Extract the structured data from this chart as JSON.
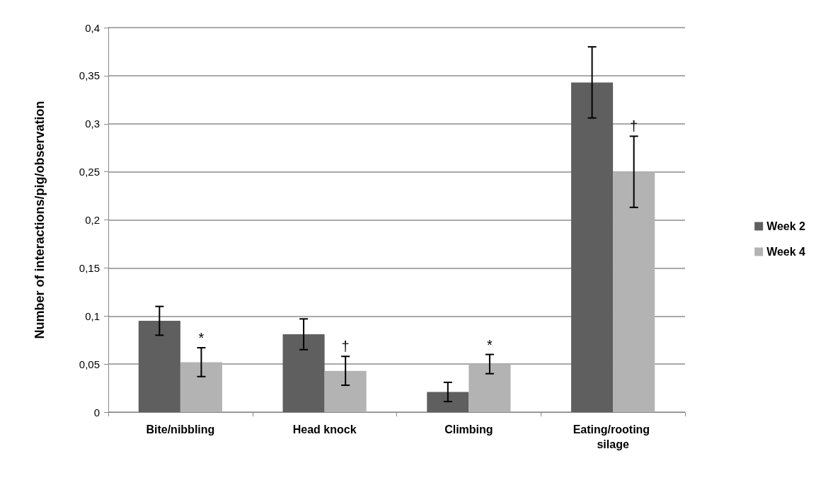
{
  "chart_data": {
    "type": "bar",
    "ylabel": "Number of interactions/pig/observation",
    "categories": [
      "Bite/nibbling",
      "Head knock",
      "Climbing",
      "Eating/rooting silage"
    ],
    "series": [
      {
        "name": "Week 2",
        "color": "#5f5f5f",
        "values": [
          0.095,
          0.081,
          0.021,
          0.343
        ],
        "errors": [
          0.015,
          0.016,
          0.01,
          0.037
        ]
      },
      {
        "name": "Week 4",
        "color": "#b3b3b3",
        "values": [
          0.052,
          0.043,
          0.05,
          0.25
        ],
        "errors": [
          0.015,
          0.015,
          0.01,
          0.037
        ]
      }
    ],
    "ylim": [
      0,
      0.4
    ],
    "yticks": [
      0,
      {
        "value": 0.05,
        "label": "0,05"
      },
      {
        "value": 0.1,
        "label": "0,1"
      },
      {
        "value": 0.15,
        "label": "0,15"
      },
      {
        "value": 0.2,
        "label": "0,2"
      },
      {
        "value": 0.25,
        "label": "0,25"
      },
      {
        "value": 0.3,
        "label": "0,3"
      },
      {
        "value": 0.35,
        "label": "0,35"
      },
      {
        "value": 0.4,
        "label": "0,4"
      }
    ],
    "annotations": [
      {
        "text": "*",
        "x": "Bite/nibbling",
        "y": 0.067
      },
      {
        "text": "†",
        "x": "Head knock",
        "y": 0.058
      },
      {
        "text": "*",
        "x": "Climbing",
        "y": 0.05
      },
      {
        "text": "†",
        "x": "Eating/rooting silage",
        "y": 0.287
      }
    ],
    "grid": "y",
    "legend": "right"
  }
}
